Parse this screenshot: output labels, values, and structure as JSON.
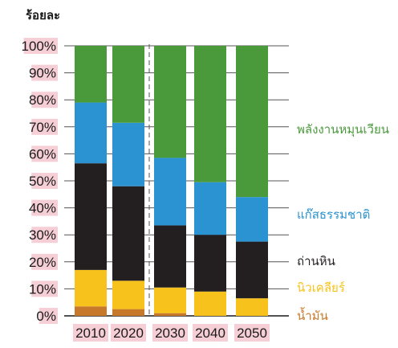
{
  "chart_data": {
    "type": "bar",
    "stacked": true,
    "ylabel": "ร้อยละ",
    "xlabel": "",
    "title": "",
    "ylim": [
      0,
      100
    ],
    "yticks": [
      "0%",
      "10%",
      "20%",
      "30%",
      "40%",
      "50%",
      "60%",
      "70%",
      "80%",
      "90%",
      "100%"
    ],
    "categories": [
      "2010",
      "2020",
      "2030",
      "2040",
      "2050"
    ],
    "divider_after_category": "2020",
    "series": [
      {
        "name": "น้ำมัน",
        "color": "#c8782a",
        "values": [
          3.5,
          2.5,
          1,
          0,
          0
        ]
      },
      {
        "name": "นิวเคลียร์",
        "color": "#f7c21b",
        "values": [
          13.5,
          10.5,
          9.5,
          9,
          6.5
        ]
      },
      {
        "name": "ถ่านหิน",
        "color": "#231f20",
        "values": [
          39.5,
          35,
          23,
          21,
          21
        ]
      },
      {
        "name": "แก๊สธรรมชาติ",
        "color": "#2b93d1",
        "values": [
          22.5,
          23.5,
          25,
          19.5,
          16.5
        ]
      },
      {
        "name": "พลังงานหมุนเวียน",
        "color": "#4a9a3c",
        "values": [
          21,
          28.5,
          41.5,
          50.5,
          56
        ]
      }
    ],
    "legend_position": "right",
    "grid": true
  }
}
